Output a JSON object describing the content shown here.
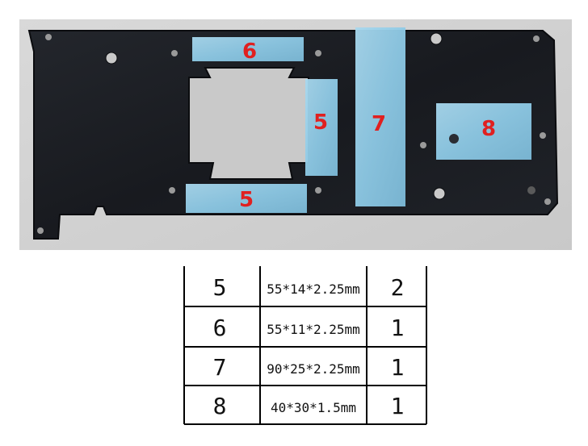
{
  "photo": {
    "pad_labels": [
      "6",
      "5",
      "7",
      "8",
      "5"
    ],
    "label_color": "#e02020",
    "pad_color": "#8ecae6",
    "plate_color": "#1b1d22"
  },
  "table": {
    "rows": [
      {
        "id": "5",
        "size": "55*14*2.25mm",
        "qty": "2"
      },
      {
        "id": "6",
        "size": "55*11*2.25mm",
        "qty": "1"
      },
      {
        "id": "7",
        "size": "90*25*2.25mm",
        "qty": "1"
      },
      {
        "id": "8",
        "size": "40*30*1.5mm",
        "qty": "1"
      }
    ]
  }
}
